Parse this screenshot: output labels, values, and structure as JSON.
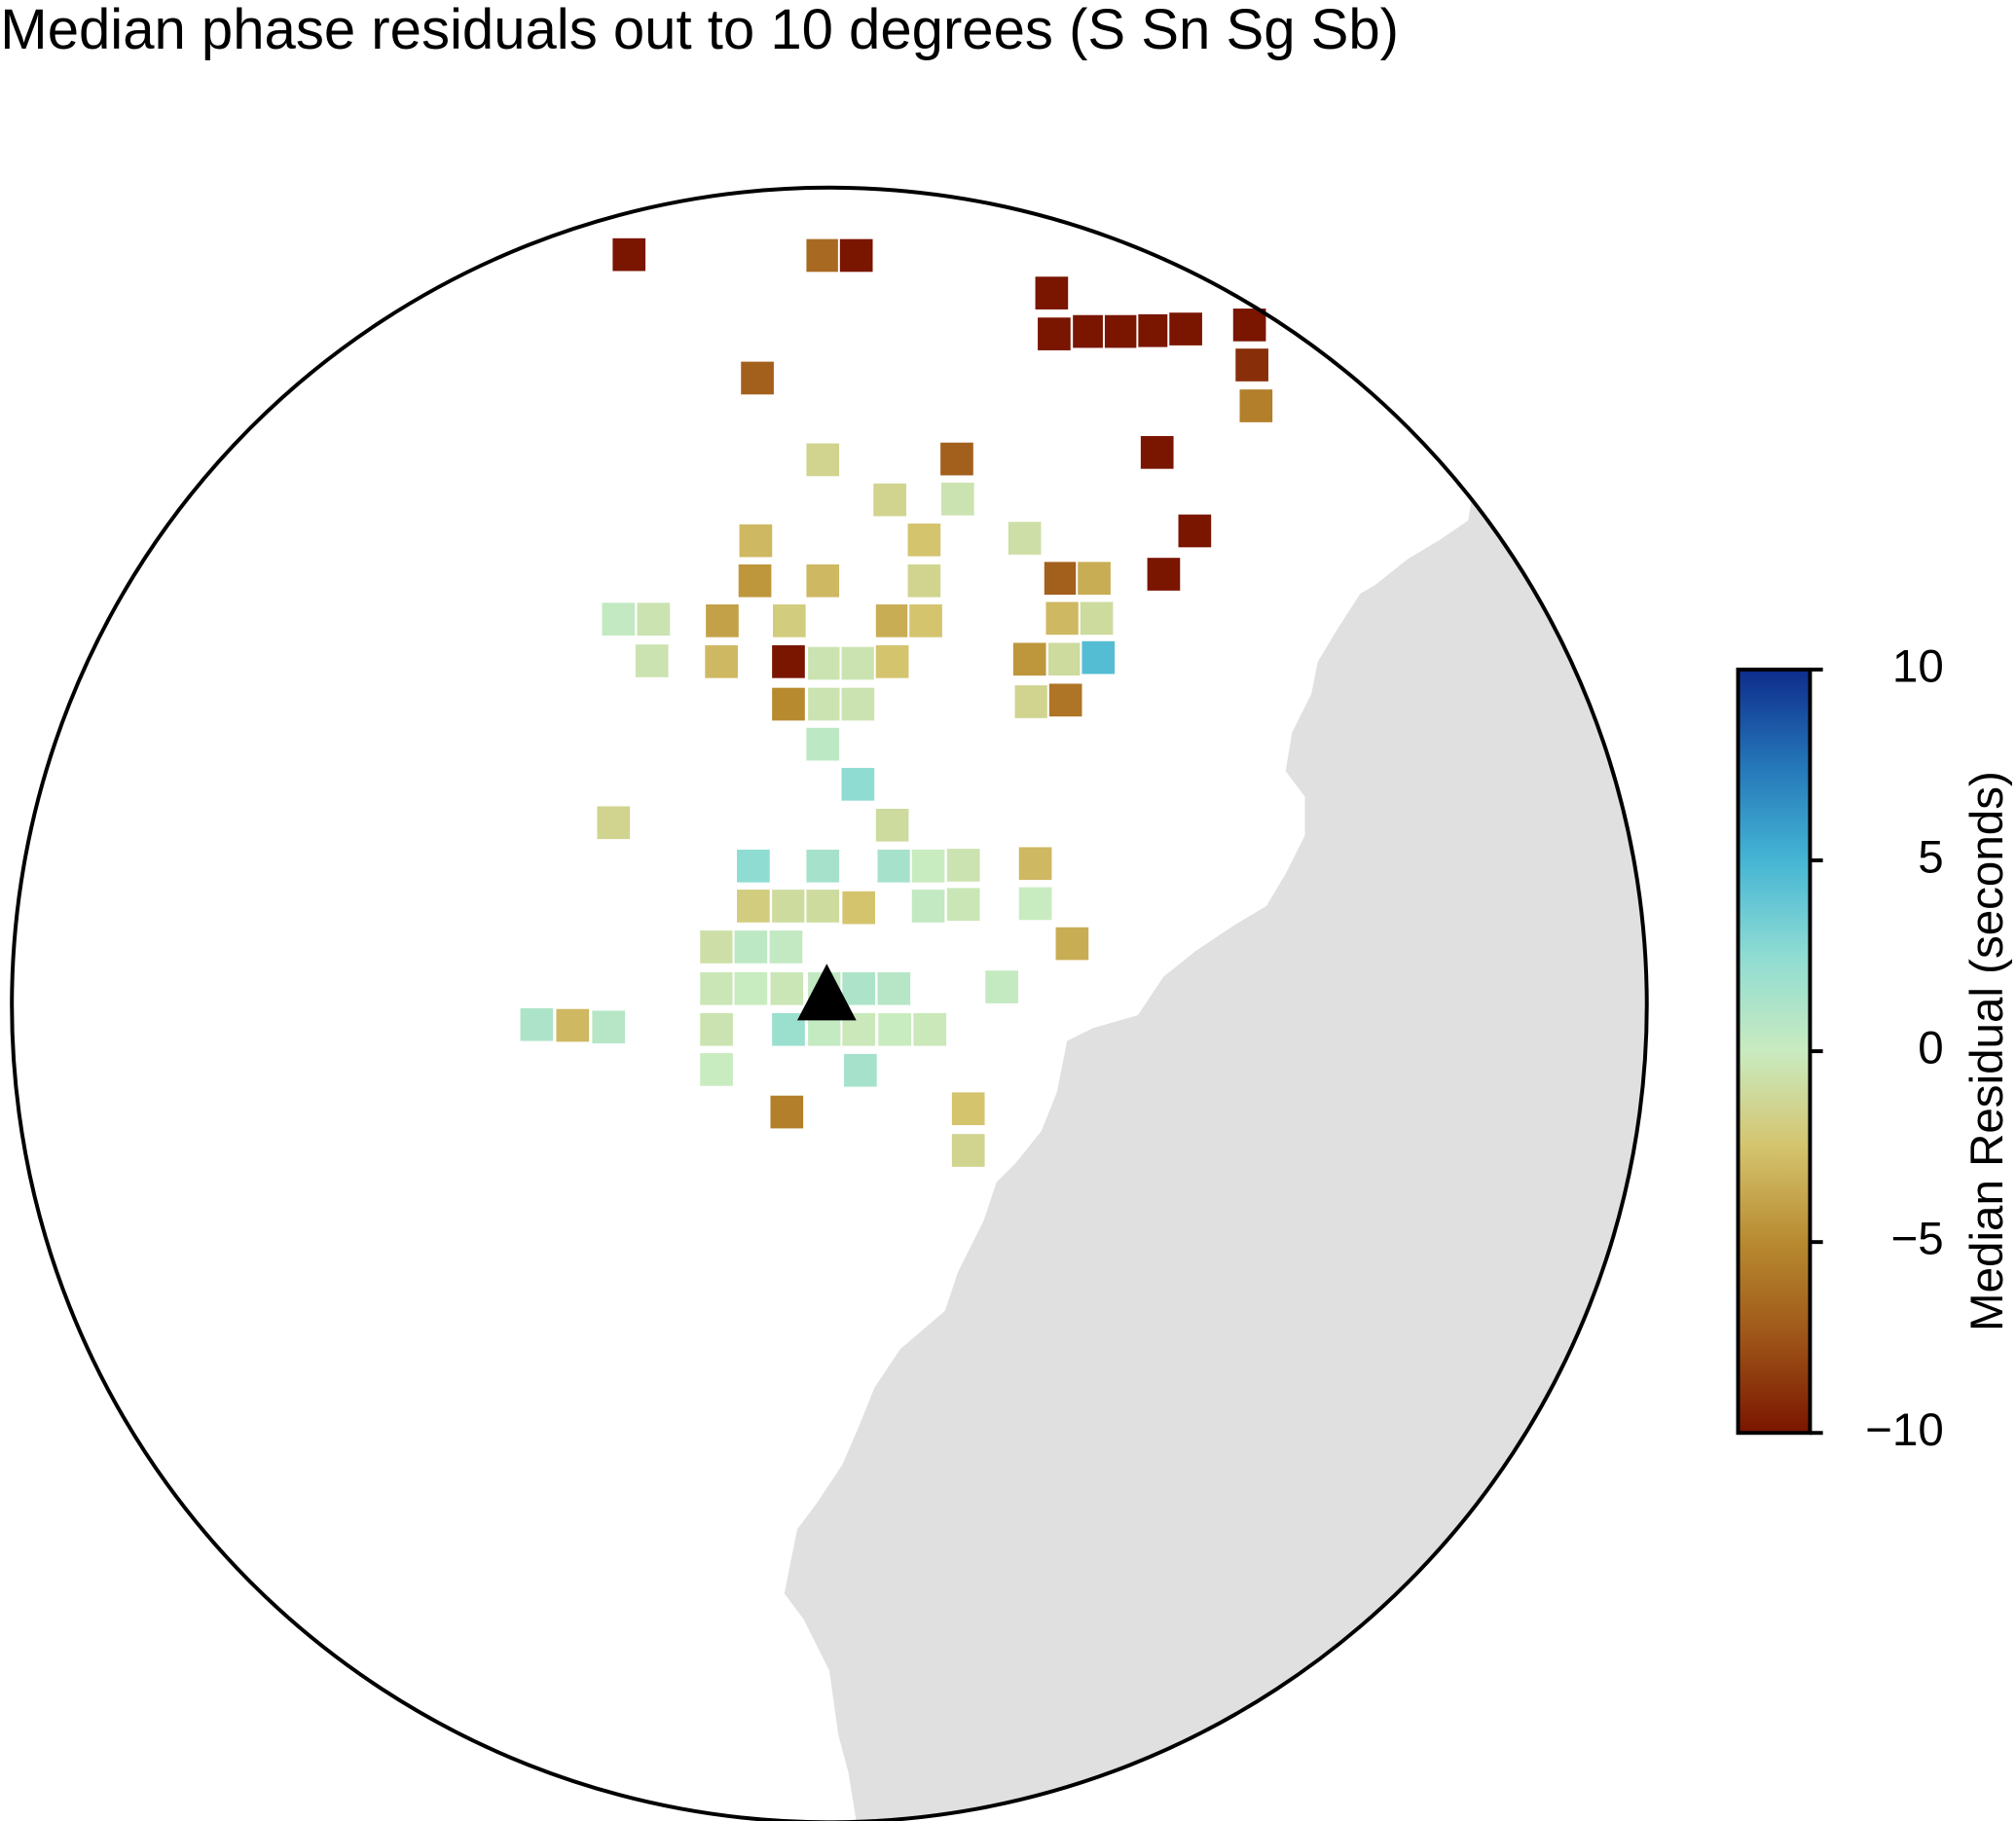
{
  "chart_data": {
    "type": "map",
    "title": "Median phase residuals out to 10 degrees (S Sn Sg Sb)",
    "colorbar_label": "Median Residual (seconds)",
    "xlim": [
      -10,
      10
    ],
    "ylim": [
      -10,
      10
    ],
    "clim": [
      -10,
      10
    ],
    "cticks": [
      {
        "value": -10,
        "label": "−10"
      },
      {
        "value": -5,
        "label": "−5"
      },
      0,
      5,
      10
    ],
    "colormap": [
      "#7a1500",
      "#9e5518",
      "#b88a30",
      "#d4c46e",
      "#c9ebc0",
      "#8fdcd3",
      "#45b5d4",
      "#2476b8",
      "#0e2c8c"
    ],
    "x": [
      -2.45,
      -0.08,
      0.33,
      2.72,
      2.75,
      3.18,
      3.57,
      3.98,
      4.36,
      5.14,
      5.17,
      5.22,
      -0.88,
      -0.08,
      1.56,
      4.01,
      0.74,
      1.57,
      -0.9,
      1.16,
      2.39,
      4.47,
      -0.91,
      -0.08,
      1.16,
      2.83,
      3.24,
      4.09,
      -2.58,
      -2.15,
      -1.31,
      -0.49,
      0.77,
      1.18,
      2.85,
      3.27,
      -2.17,
      -1.32,
      -0.5,
      -0.06,
      0.35,
      0.77,
      2.45,
      2.88,
      3.29,
      -0.5,
      -0.06,
      0.35,
      2.47,
      2.89,
      -0.08,
      0.35,
      -2.64,
      0.77,
      -0.93,
      -0.08,
      0.79,
      1.21,
      1.64,
      2.52,
      -0.93,
      -0.5,
      -0.08,
      0.36,
      1.21,
      1.64,
      2.52,
      2.97,
      -1.38,
      -0.96,
      -0.53,
      -1.38,
      -0.96,
      -0.52,
      -0.06,
      0.36,
      0.79,
      2.11,
      -3.58,
      -3.14,
      -2.7,
      -1.38,
      -0.5,
      -0.06,
      0.36,
      0.8,
      1.23,
      -1.38,
      0.38,
      -0.52,
      1.7,
      1.7
    ],
    "y": [
      9.18,
      9.17,
      9.17,
      8.71,
      8.21,
      8.24,
      8.24,
      8.25,
      8.27,
      8.32,
      7.83,
      7.33,
      7.67,
      6.67,
      6.68,
      6.76,
      6.18,
      6.19,
      5.68,
      5.69,
      5.71,
      5.8,
      5.19,
      5.19,
      5.19,
      5.22,
      5.22,
      5.27,
      4.72,
      4.72,
      4.7,
      4.7,
      4.7,
      4.7,
      4.73,
      4.73,
      4.21,
      4.2,
      4.2,
      4.18,
      4.18,
      4.2,
      4.23,
      4.23,
      4.25,
      3.68,
      3.68,
      3.68,
      3.71,
      3.73,
      3.19,
      2.7,
      2.23,
      2.2,
      1.7,
      1.7,
      1.7,
      1.7,
      1.71,
      1.73,
      1.21,
      1.21,
      1.21,
      1.19,
      1.21,
      1.23,
      1.24,
      0.75,
      0.71,
      0.71,
      0.71,
      0.2,
      0.2,
      0.2,
      0.2,
      0.2,
      0.2,
      0.22,
      -0.24,
      -0.25,
      -0.27,
      -0.3,
      -0.3,
      -0.3,
      -0.3,
      -0.3,
      -0.3,
      -0.79,
      -0.8,
      -1.31,
      -1.27,
      -1.78
    ],
    "values": [
      -10,
      -6.5,
      -10,
      -10,
      -10,
      -10,
      -10,
      -10,
      -10,
      -10,
      -9,
      -5.5,
      -7,
      -1.5,
      -7,
      -10,
      -1.5,
      -0.5,
      -3,
      -2.5,
      -0.8,
      -10,
      -4.5,
      -3,
      -1.5,
      -7,
      -3.5,
      -10,
      0.3,
      -0.5,
      -4,
      -2,
      -3.5,
      -2.5,
      -3,
      -1,
      -0.5,
      -3,
      -10,
      -0.5,
      -0.5,
      -2.5,
      -4.5,
      -1,
      4.5,
      -5,
      -0.5,
      -0.5,
      -1.5,
      -6,
      0.5,
      2.5,
      -1.5,
      -1,
      2.5,
      1.5,
      1.5,
      0,
      -0.5,
      -3,
      -2,
      -1,
      -1,
      -2.5,
      0.3,
      -0.3,
      0,
      -3.5,
      -0.8,
      0.5,
      0.3,
      -0.3,
      0,
      -0.3,
      0.3,
      1.2,
      0.8,
      0.2,
      1.2,
      -3,
      0.8,
      -0.5,
      2,
      0.2,
      -0.2,
      0,
      -0.2,
      0,
      1.5,
      -5.5,
      -2.5,
      -1.5
    ]
  }
}
